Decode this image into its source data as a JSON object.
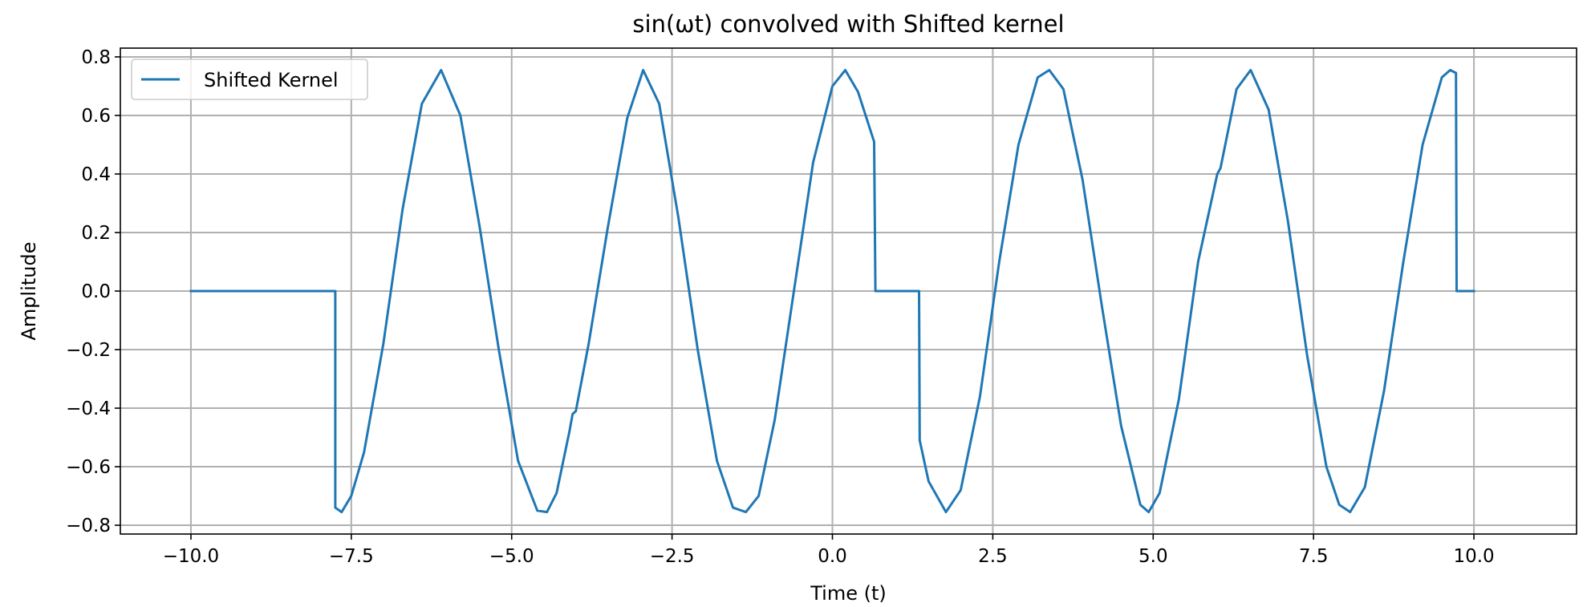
{
  "chart_data": {
    "type": "line",
    "title": "sin(ωt) convolved with Shifted kernel",
    "xlabel": "Time (t)",
    "ylabel": "Amplitude",
    "xlim": [
      -11.1,
      11.6
    ],
    "ylim": [
      -0.83,
      0.83
    ],
    "xticks": [
      -10.0,
      -7.5,
      -5.0,
      -2.5,
      0.0,
      2.5,
      5.0,
      7.5,
      10.0
    ],
    "xtick_labels": [
      "−10.0",
      "−7.5",
      "−5.0",
      "−2.5",
      "0.0",
      "2.5",
      "5.0",
      "7.5",
      "10.0"
    ],
    "yticks": [
      -0.8,
      -0.6,
      -0.4,
      -0.2,
      0.0,
      0.2,
      0.4,
      0.6,
      0.8
    ],
    "ytick_labels": [
      "−0.8",
      "−0.6",
      "−0.4",
      "−0.2",
      "0.0",
      "0.2",
      "0.4",
      "0.6",
      "0.8"
    ],
    "grid": true,
    "legend_position": "top-left",
    "series": [
      {
        "name": "Shifted Kernel",
        "color": "#1f77b4",
        "x": [
          -10.0,
          -7.75,
          -7.75,
          -7.65,
          -7.5,
          -7.3,
          -7.0,
          -6.7,
          -6.4,
          -6.1,
          -5.8,
          -5.5,
          -5.2,
          -4.9,
          -4.6,
          -4.45,
          -4.3,
          -4.1,
          -4.05,
          -4.0,
          -3.8,
          -3.5,
          -3.2,
          -2.95,
          -2.7,
          -2.4,
          -2.1,
          -1.8,
          -1.55,
          -1.35,
          -1.15,
          -0.9,
          -0.6,
          -0.3,
          0.0,
          0.2,
          0.4,
          0.65,
          0.67,
          1.35,
          1.36,
          1.5,
          1.77,
          2.0,
          2.3,
          2.6,
          2.9,
          3.2,
          3.38,
          3.6,
          3.9,
          4.2,
          4.5,
          4.8,
          4.93,
          5.1,
          5.4,
          5.7,
          6.0,
          6.05,
          6.3,
          6.52,
          6.8,
          7.1,
          7.4,
          7.7,
          7.9,
          8.07,
          8.3,
          8.6,
          8.9,
          9.2,
          9.5,
          9.63,
          9.72,
          9.73,
          10.0
        ],
        "y": [
          0.0,
          0.0,
          -0.74,
          -0.755,
          -0.7,
          -0.55,
          -0.18,
          0.28,
          0.64,
          0.755,
          0.6,
          0.22,
          -0.2,
          -0.58,
          -0.75,
          -0.755,
          -0.69,
          -0.48,
          -0.42,
          -0.41,
          -0.18,
          0.22,
          0.59,
          0.755,
          0.64,
          0.25,
          -0.2,
          -0.58,
          -0.74,
          -0.755,
          -0.7,
          -0.44,
          0.0,
          0.44,
          0.7,
          0.755,
          0.68,
          0.51,
          0.0,
          0.0,
          -0.51,
          -0.65,
          -0.755,
          -0.68,
          -0.36,
          0.1,
          0.5,
          0.73,
          0.755,
          0.69,
          0.38,
          -0.05,
          -0.46,
          -0.73,
          -0.755,
          -0.69,
          -0.37,
          0.1,
          0.4,
          0.42,
          0.69,
          0.755,
          0.62,
          0.24,
          -0.22,
          -0.6,
          -0.73,
          -0.755,
          -0.67,
          -0.34,
          0.1,
          0.5,
          0.73,
          0.755,
          0.745,
          0.0,
          0.0
        ]
      }
    ]
  }
}
